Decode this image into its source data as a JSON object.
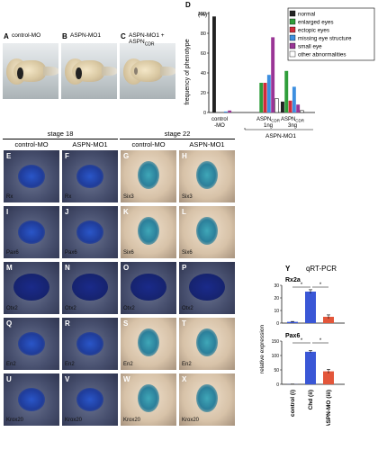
{
  "panels_top": [
    {
      "letter": "A",
      "label": "control-MO",
      "eye": true
    },
    {
      "letter": "B",
      "label": "ASPN-MO1",
      "eye": true
    },
    {
      "letter": "C",
      "label": "ASPN-MO1 + ASPN",
      "label_sub": "CDR",
      "eye": false
    }
  ],
  "panel_d_letter": "D",
  "stage_headers": {
    "stage18": "stage 18",
    "stage22": "stage 22"
  },
  "col_headers": [
    "control-MO",
    "ASPN-MO1",
    "control-MO",
    "ASPN-MO1"
  ],
  "embryo_rows": [
    {
      "letters": [
        "E",
        "F",
        "G",
        "H"
      ],
      "labels": [
        "Rx",
        "Rx",
        "Six3",
        "Six3"
      ]
    },
    {
      "letters": [
        "I",
        "J",
        "K",
        "L"
      ],
      "labels": [
        "Pax6",
        "Pax6",
        "Six6",
        "Six6"
      ]
    },
    {
      "letters": [
        "M",
        "N",
        "O",
        "P"
      ],
      "labels": [
        "Otx2",
        "Otx2",
        "Otx2",
        "Otx2"
      ]
    },
    {
      "letters": [
        "Q",
        "R",
        "S",
        "T"
      ],
      "labels": [
        "En2",
        "En2",
        "En2",
        "En2"
      ]
    },
    {
      "letters": [
        "U",
        "V",
        "W",
        "X"
      ],
      "labels": [
        "Krox20",
        "Krox20",
        "Krox20",
        "Krox20"
      ]
    }
  ],
  "chart_data": [
    {
      "type": "bar",
      "panel": "D",
      "ylabel": "frequency of phenotype",
      "yunit": "(%)",
      "ylim": [
        0,
        100
      ],
      "yticks": [
        0,
        20,
        40,
        60,
        80,
        100
      ],
      "groups": [
        "control -MO",
        "ASPN-CDR 1ng",
        "ASPN-CDR 3ng"
      ],
      "group_labels": [
        {
          "text": "control",
          "text2": "-MO"
        },
        {
          "text": "ASPN",
          "sub": "CDR",
          "text2": "1ng"
        },
        {
          "text": "ASPN",
          "sub": "CDR",
          "text2": "3ng"
        }
      ],
      "bracket_label": "ASPN-MO1",
      "series": [
        {
          "name": "normal",
          "color": "#222222",
          "values": [
            97,
            0,
            11
          ]
        },
        {
          "name": "enlarged eyes",
          "color": "#2f9e3a",
          "values": [
            0,
            30,
            42
          ]
        },
        {
          "name": "ectopic eyes",
          "color": "#d32a3a",
          "values": [
            0,
            30,
            12
          ]
        },
        {
          "name": "missing eye structure",
          "color": "#3d8fe0",
          "values": [
            1,
            38,
            26
          ]
        },
        {
          "name": "small eye",
          "color": "#9a3596",
          "values": [
            2,
            76,
            8
          ]
        },
        {
          "name": "other abnormalities",
          "color": "#ffffff",
          "values": [
            0,
            14,
            2
          ]
        }
      ],
      "extra_bars_note": "control group: small near-zero bar at ~2% for small eye"
    },
    {
      "type": "bar",
      "panel": "Y",
      "title": "qRT-PCR",
      "ylabel": "relative expression",
      "categories": [
        "control (i)",
        "Chd (ii)",
        "Chd + ASPN-MO (iii)"
      ],
      "subplots": [
        {
          "gene": "Rx2a",
          "values": [
            1,
            25,
            5
          ],
          "errors": [
            0.3,
            1.5,
            1.5
          ],
          "ylim": [
            0,
            30
          ],
          "yticks": [
            0,
            10,
            20,
            30
          ],
          "colors": [
            "#3a57d6",
            "#3a57d6",
            "#e3563a"
          ],
          "significance": [
            "*",
            "*"
          ]
        },
        {
          "gene": "Pax6",
          "values": [
            0.5,
            113,
            45
          ],
          "errors": [
            0.3,
            4,
            7
          ],
          "ylim": [
            0,
            150
          ],
          "yticks": [
            0,
            50,
            100,
            150
          ],
          "colors": [
            "#3a57d6",
            "#3a57d6",
            "#e3563a"
          ],
          "significance": [
            "*",
            "*"
          ]
        }
      ]
    }
  ],
  "panel_y_letter": "Y",
  "legend_order": [
    "normal",
    "enlarged eyes",
    "ectopic eyes",
    "missing eye structure",
    "small eye",
    "other abnormalities"
  ]
}
